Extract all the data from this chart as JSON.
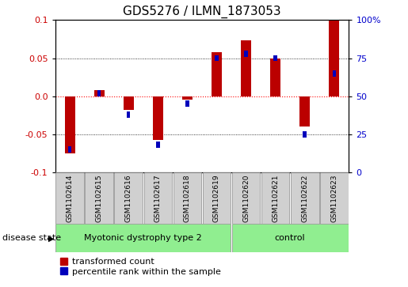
{
  "title": "GDS5276 / ILMN_1873053",
  "samples": [
    "GSM1102614",
    "GSM1102615",
    "GSM1102616",
    "GSM1102617",
    "GSM1102618",
    "GSM1102619",
    "GSM1102620",
    "GSM1102621",
    "GSM1102622",
    "GSM1102623"
  ],
  "red_values": [
    -0.075,
    0.008,
    -0.018,
    -0.058,
    -0.005,
    0.058,
    0.073,
    0.05,
    -0.04,
    0.1
  ],
  "blue_percentile": [
    15,
    52,
    38,
    18,
    45,
    75,
    78,
    75,
    25,
    65
  ],
  "group1_label": "Myotonic dystrophy type 2",
  "group1_count": 6,
  "group2_label": "control",
  "group2_count": 4,
  "ylim": [
    -0.1,
    0.1
  ],
  "yticks_left": [
    -0.1,
    -0.05,
    0.0,
    0.05,
    0.1
  ],
  "yticks_right": [
    0,
    25,
    50,
    75,
    100
  ],
  "red_color": "#BB0000",
  "blue_color": "#0000BB",
  "group_color": "#90EE90",
  "sample_box_color": "#D0D0D0",
  "tick_label_color_left": "#CC0000",
  "tick_label_color_right": "#0000CC",
  "red_bar_width": 0.35,
  "blue_bar_width": 0.12
}
